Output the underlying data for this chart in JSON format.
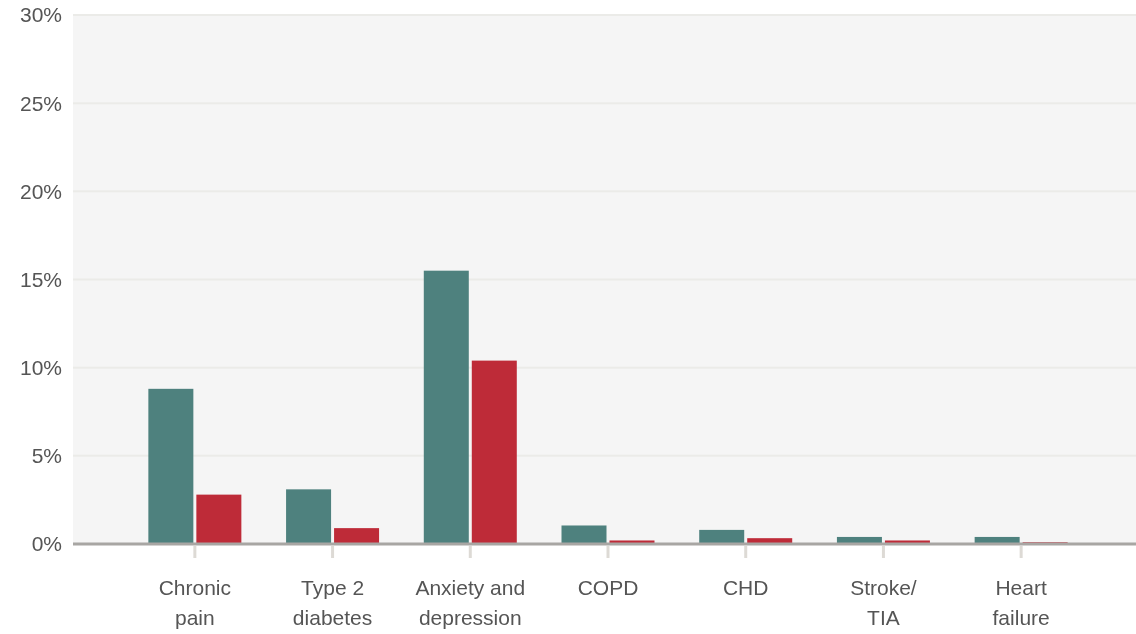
{
  "chart_data": {
    "type": "bar",
    "categories": [
      "Chronic pain",
      "Type 2 diabetes",
      "Anxiety and depression",
      "COPD",
      "CHD",
      "Stroke/TIA",
      "Heart failure"
    ],
    "series": [
      {
        "color": "#4e817e",
        "values": [
          8.8,
          3.1,
          15.5,
          1.05,
          0.8,
          0.4,
          0.4
        ]
      },
      {
        "color": "#be2b38",
        "values": [
          2.8,
          0.9,
          10.4,
          0.2,
          0.33,
          0.2,
          0.1
        ]
      }
    ],
    "ylim": [
      0,
      30
    ],
    "yticks": [
      {
        "value": 0,
        "label": "0%"
      },
      {
        "value": 5,
        "label": "5%"
      },
      {
        "value": 10,
        "label": "10%"
      },
      {
        "value": 15,
        "label": "15%"
      },
      {
        "value": 20,
        "label": "20%"
      },
      {
        "value": 25,
        "label": "25%"
      },
      {
        "value": 30,
        "label": "30%"
      }
    ],
    "grid": "y"
  }
}
